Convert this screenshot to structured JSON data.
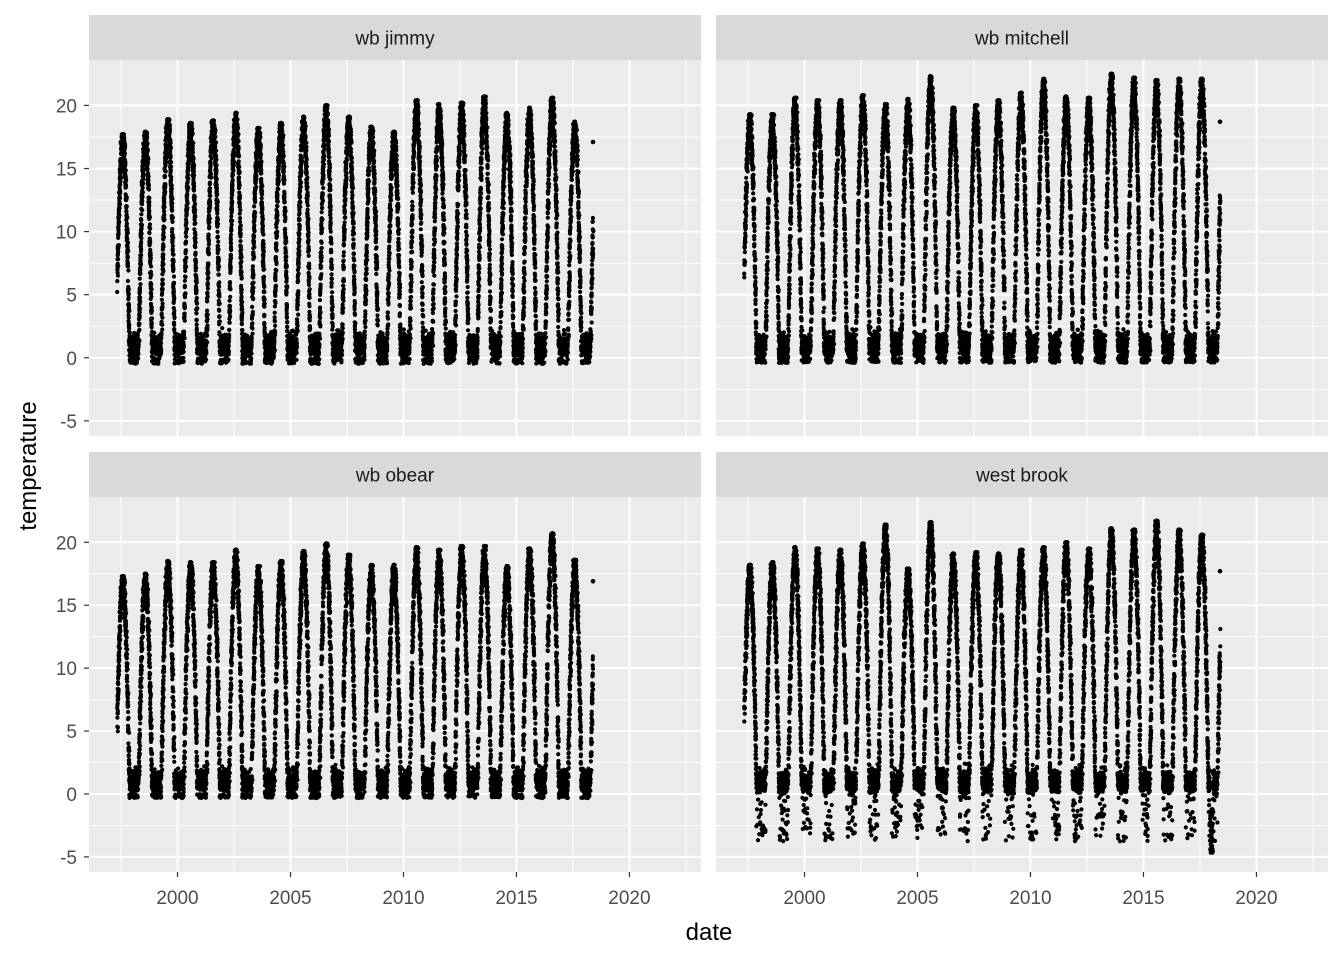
{
  "chart_data": {
    "type": "scatter",
    "facet_layout": "2x2 grid, shared x and y axes",
    "xlabel": "date",
    "ylabel": "temperature",
    "x_ticks": [
      "2000",
      "2005",
      "2010",
      "2015",
      "2020"
    ],
    "y_ticks": [
      -5,
      0,
      5,
      10,
      15,
      20
    ],
    "xlim": [
      "1996-02-01",
      "2023-03-01"
    ],
    "ylim": [
      -6.2,
      23.6
    ],
    "grid": true,
    "legend": "none",
    "colors": {
      "point": "#000000",
      "panel_bg": "#ebebeb",
      "strip_bg": "#d9d9d9",
      "grid": "#ffffff"
    },
    "series_shape": "daily readings following an annual cycle: low near 0 in winter, peak in summer",
    "panels": [
      {
        "name": "wb jimmy",
        "date_range": [
          "1997-05-01",
          "2018-05-20"
        ],
        "annual_peaks": [
          {
            "year": 1997,
            "peak": 17.7
          },
          {
            "year": 1998,
            "peak": 17.9
          },
          {
            "year": 1999,
            "peak": 18.9
          },
          {
            "year": 2000,
            "peak": 18.6
          },
          {
            "year": 2001,
            "peak": 18.8
          },
          {
            "year": 2002,
            "peak": 19.4
          },
          {
            "year": 2003,
            "peak": 18.2
          },
          {
            "year": 2004,
            "peak": 18.6
          },
          {
            "year": 2005,
            "peak": 19.1
          },
          {
            "year": 2006,
            "peak": 20.0
          },
          {
            "year": 2007,
            "peak": 19.1
          },
          {
            "year": 2008,
            "peak": 18.3
          },
          {
            "year": 2009,
            "peak": 17.9
          },
          {
            "year": 2010,
            "peak": 20.4
          },
          {
            "year": 2011,
            "peak": 20.1
          },
          {
            "year": 2012,
            "peak": 20.2
          },
          {
            "year": 2013,
            "peak": 20.7
          },
          {
            "year": 2014,
            "peak": 19.4
          },
          {
            "year": 2015,
            "peak": 19.8
          },
          {
            "year": 2016,
            "peak": 20.6
          },
          {
            "year": 2017,
            "peak": 18.7
          }
        ],
        "min": -0.6,
        "last_value": 17.1
      },
      {
        "name": "wb mitchell",
        "date_range": [
          "1997-05-01",
          "2018-05-20"
        ],
        "annual_peaks": [
          {
            "year": 1997,
            "peak": 19.3
          },
          {
            "year": 1998,
            "peak": 19.3
          },
          {
            "year": 1999,
            "peak": 20.6
          },
          {
            "year": 2000,
            "peak": 20.4
          },
          {
            "year": 2001,
            "peak": 20.4
          },
          {
            "year": 2002,
            "peak": 20.8
          },
          {
            "year": 2003,
            "peak": 20.1
          },
          {
            "year": 2004,
            "peak": 20.5
          },
          {
            "year": 2005,
            "peak": 22.3
          },
          {
            "year": 2006,
            "peak": 19.8
          },
          {
            "year": 2007,
            "peak": 20.0
          },
          {
            "year": 2008,
            "peak": 20.4
          },
          {
            "year": 2009,
            "peak": 21.0
          },
          {
            "year": 2010,
            "peak": 22.1
          },
          {
            "year": 2011,
            "peak": 20.7
          },
          {
            "year": 2012,
            "peak": 20.6
          },
          {
            "year": 2013,
            "peak": 22.5
          },
          {
            "year": 2014,
            "peak": 22.2
          },
          {
            "year": 2015,
            "peak": 22.0
          },
          {
            "year": 2016,
            "peak": 22.1
          },
          {
            "year": 2017,
            "peak": 22.1
          }
        ],
        "min": -0.5,
        "last_value": 18.7
      },
      {
        "name": "wb obear",
        "date_range": [
          "1997-05-01",
          "2018-05-20"
        ],
        "annual_peaks": [
          {
            "year": 1997,
            "peak": 17.3
          },
          {
            "year": 1998,
            "peak": 17.5
          },
          {
            "year": 1999,
            "peak": 18.5
          },
          {
            "year": 2000,
            "peak": 18.4
          },
          {
            "year": 2001,
            "peak": 18.4
          },
          {
            "year": 2002,
            "peak": 19.4
          },
          {
            "year": 2003,
            "peak": 18.1
          },
          {
            "year": 2004,
            "peak": 18.5
          },
          {
            "year": 2005,
            "peak": 19.3
          },
          {
            "year": 2006,
            "peak": 19.9
          },
          {
            "year": 2007,
            "peak": 19.0
          },
          {
            "year": 2008,
            "peak": 18.2
          },
          {
            "year": 2009,
            "peak": 18.2
          },
          {
            "year": 2010,
            "peak": 19.6
          },
          {
            "year": 2011,
            "peak": 19.4
          },
          {
            "year": 2012,
            "peak": 19.7
          },
          {
            "year": 2013,
            "peak": 19.7
          },
          {
            "year": 2014,
            "peak": 18.1
          },
          {
            "year": 2015,
            "peak": 19.5
          },
          {
            "year": 2016,
            "peak": 20.7
          },
          {
            "year": 2017,
            "peak": 18.6
          }
        ],
        "min": -0.4,
        "last_value": 16.9
      },
      {
        "name": "west brook",
        "date_range": [
          "1997-05-01",
          "2018-05-20"
        ],
        "annual_peaks": [
          {
            "year": 1997,
            "peak": 18.2
          },
          {
            "year": 1998,
            "peak": 18.4
          },
          {
            "year": 1999,
            "peak": 19.6
          },
          {
            "year": 2000,
            "peak": 19.5
          },
          {
            "year": 2001,
            "peak": 19.4
          },
          {
            "year": 2002,
            "peak": 19.9
          },
          {
            "year": 2003,
            "peak": 21.4
          },
          {
            "year": 2004,
            "peak": 17.9
          },
          {
            "year": 2005,
            "peak": 21.6
          },
          {
            "year": 2006,
            "peak": 19.1
          },
          {
            "year": 2007,
            "peak": 19.2
          },
          {
            "year": 2008,
            "peak": 19.1
          },
          {
            "year": 2009,
            "peak": 19.4
          },
          {
            "year": 2010,
            "peak": 19.6
          },
          {
            "year": 2011,
            "peak": 20.0
          },
          {
            "year": 2012,
            "peak": 19.5
          },
          {
            "year": 2013,
            "peak": 21.1
          },
          {
            "year": 2014,
            "peak": 21.0
          },
          {
            "year": 2015,
            "peak": 21.7
          },
          {
            "year": 2016,
            "peak": 21.0
          },
          {
            "year": 2017,
            "peak": 20.6
          }
        ],
        "min": -4.7,
        "min_date": "2018-01-05",
        "last_value": 17.7
      }
    ]
  }
}
